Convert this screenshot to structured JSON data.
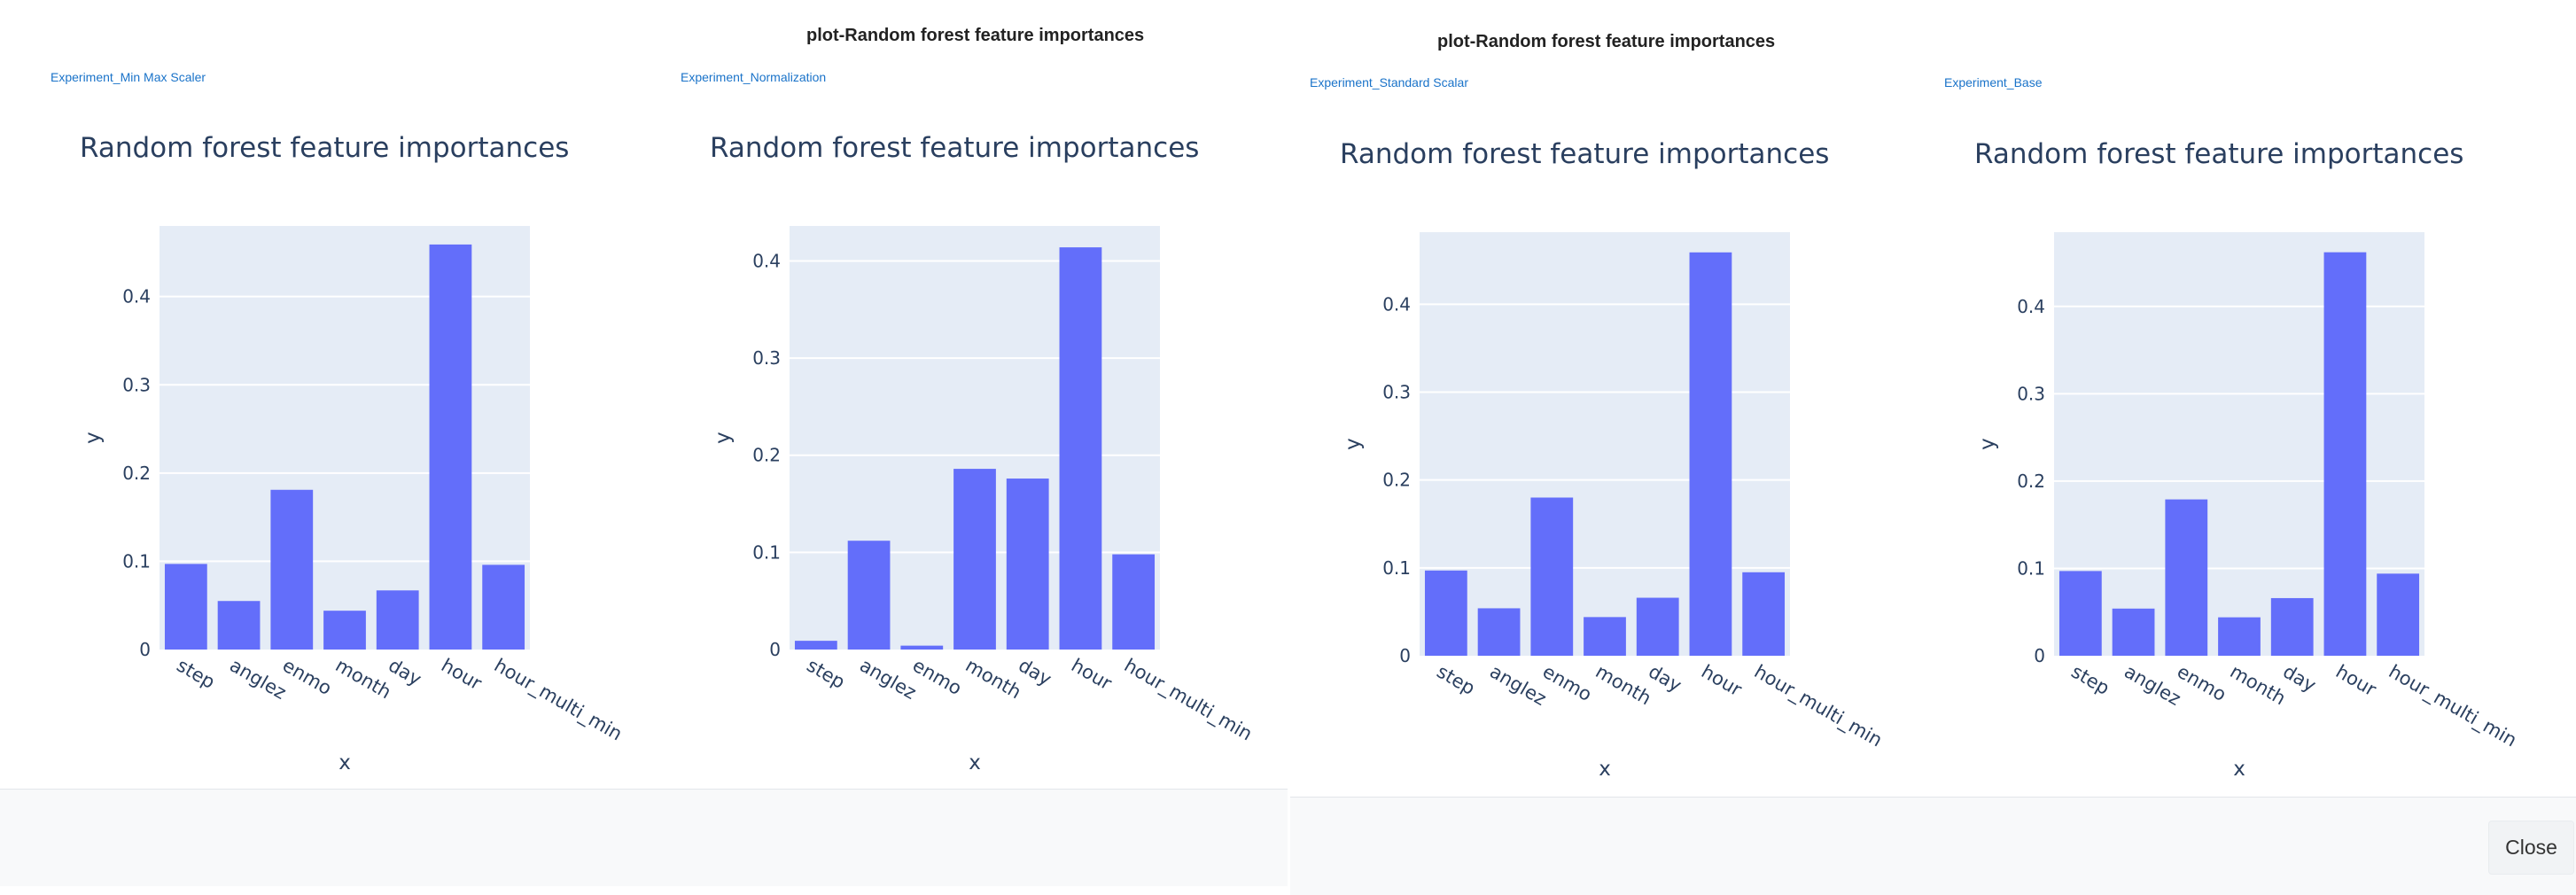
{
  "dialogs": [
    {
      "title": "plot-Random forest feature importances"
    },
    {
      "title": "plot-Random forest feature importances"
    }
  ],
  "footer": {
    "close_label": "Close"
  },
  "colors": {
    "bar": "#636efa",
    "plot_bg": "#e5ecf6",
    "grid": "#ffffff",
    "text": "#2a3f5f",
    "link": "#1a73c9"
  },
  "chart_data": [
    {
      "experiment": "Experiment_Min Max Scaler",
      "type": "bar",
      "title": "Random forest feature importances",
      "xlabel": "x",
      "ylabel": "y",
      "categories": [
        "step",
        "anglez",
        "enmo",
        "month",
        "day",
        "hour",
        "hour_multi_min"
      ],
      "values": [
        0.097,
        0.055,
        0.181,
        0.044,
        0.067,
        0.459,
        0.096
      ],
      "ylim": [
        0,
        0.48
      ],
      "yticks": [
        0,
        0.1,
        0.2,
        0.3,
        0.4
      ],
      "ytick_labels": [
        "0",
        "0.1",
        "0.2",
        "0.3",
        "0.4"
      ],
      "grid": true
    },
    {
      "experiment": "Experiment_Normalization",
      "type": "bar",
      "title": "Random forest feature importances",
      "xlabel": "x",
      "ylabel": "y",
      "categories": [
        "step",
        "anglez",
        "enmo",
        "month",
        "day",
        "hour",
        "hour_multi_min"
      ],
      "values": [
        0.009,
        0.112,
        0.004,
        0.186,
        0.176,
        0.414,
        0.098
      ],
      "ylim": [
        0,
        0.436
      ],
      "yticks": [
        0,
        0.1,
        0.2,
        0.3,
        0.4
      ],
      "ytick_labels": [
        "0",
        "0.1",
        "0.2",
        "0.3",
        "0.4"
      ],
      "grid": true
    },
    {
      "experiment": "Experiment_Standard Scalar",
      "type": "bar",
      "title": "Random forest feature importances",
      "xlabel": "x",
      "ylabel": "y",
      "categories": [
        "step",
        "anglez",
        "enmo",
        "month",
        "day",
        "hour",
        "hour_multi_min"
      ],
      "values": [
        0.097,
        0.054,
        0.18,
        0.044,
        0.066,
        0.459,
        0.095
      ],
      "ylim": [
        0,
        0.482
      ],
      "yticks": [
        0,
        0.1,
        0.2,
        0.3,
        0.4
      ],
      "ytick_labels": [
        "0",
        "0.1",
        "0.2",
        "0.3",
        "0.4"
      ],
      "grid": true
    },
    {
      "experiment": "Experiment_Base",
      "type": "bar",
      "title": "Random forest feature importances",
      "xlabel": "x",
      "ylabel": "y",
      "categories": [
        "step",
        "anglez",
        "enmo",
        "month",
        "day",
        "hour",
        "hour_multi_min"
      ],
      "values": [
        0.097,
        0.054,
        0.179,
        0.044,
        0.066,
        0.462,
        0.094
      ],
      "ylim": [
        0,
        0.485
      ],
      "yticks": [
        0,
        0.1,
        0.2,
        0.3,
        0.4
      ],
      "ytick_labels": [
        "0",
        "0.1",
        "0.2",
        "0.3",
        "0.4"
      ],
      "grid": true
    }
  ]
}
